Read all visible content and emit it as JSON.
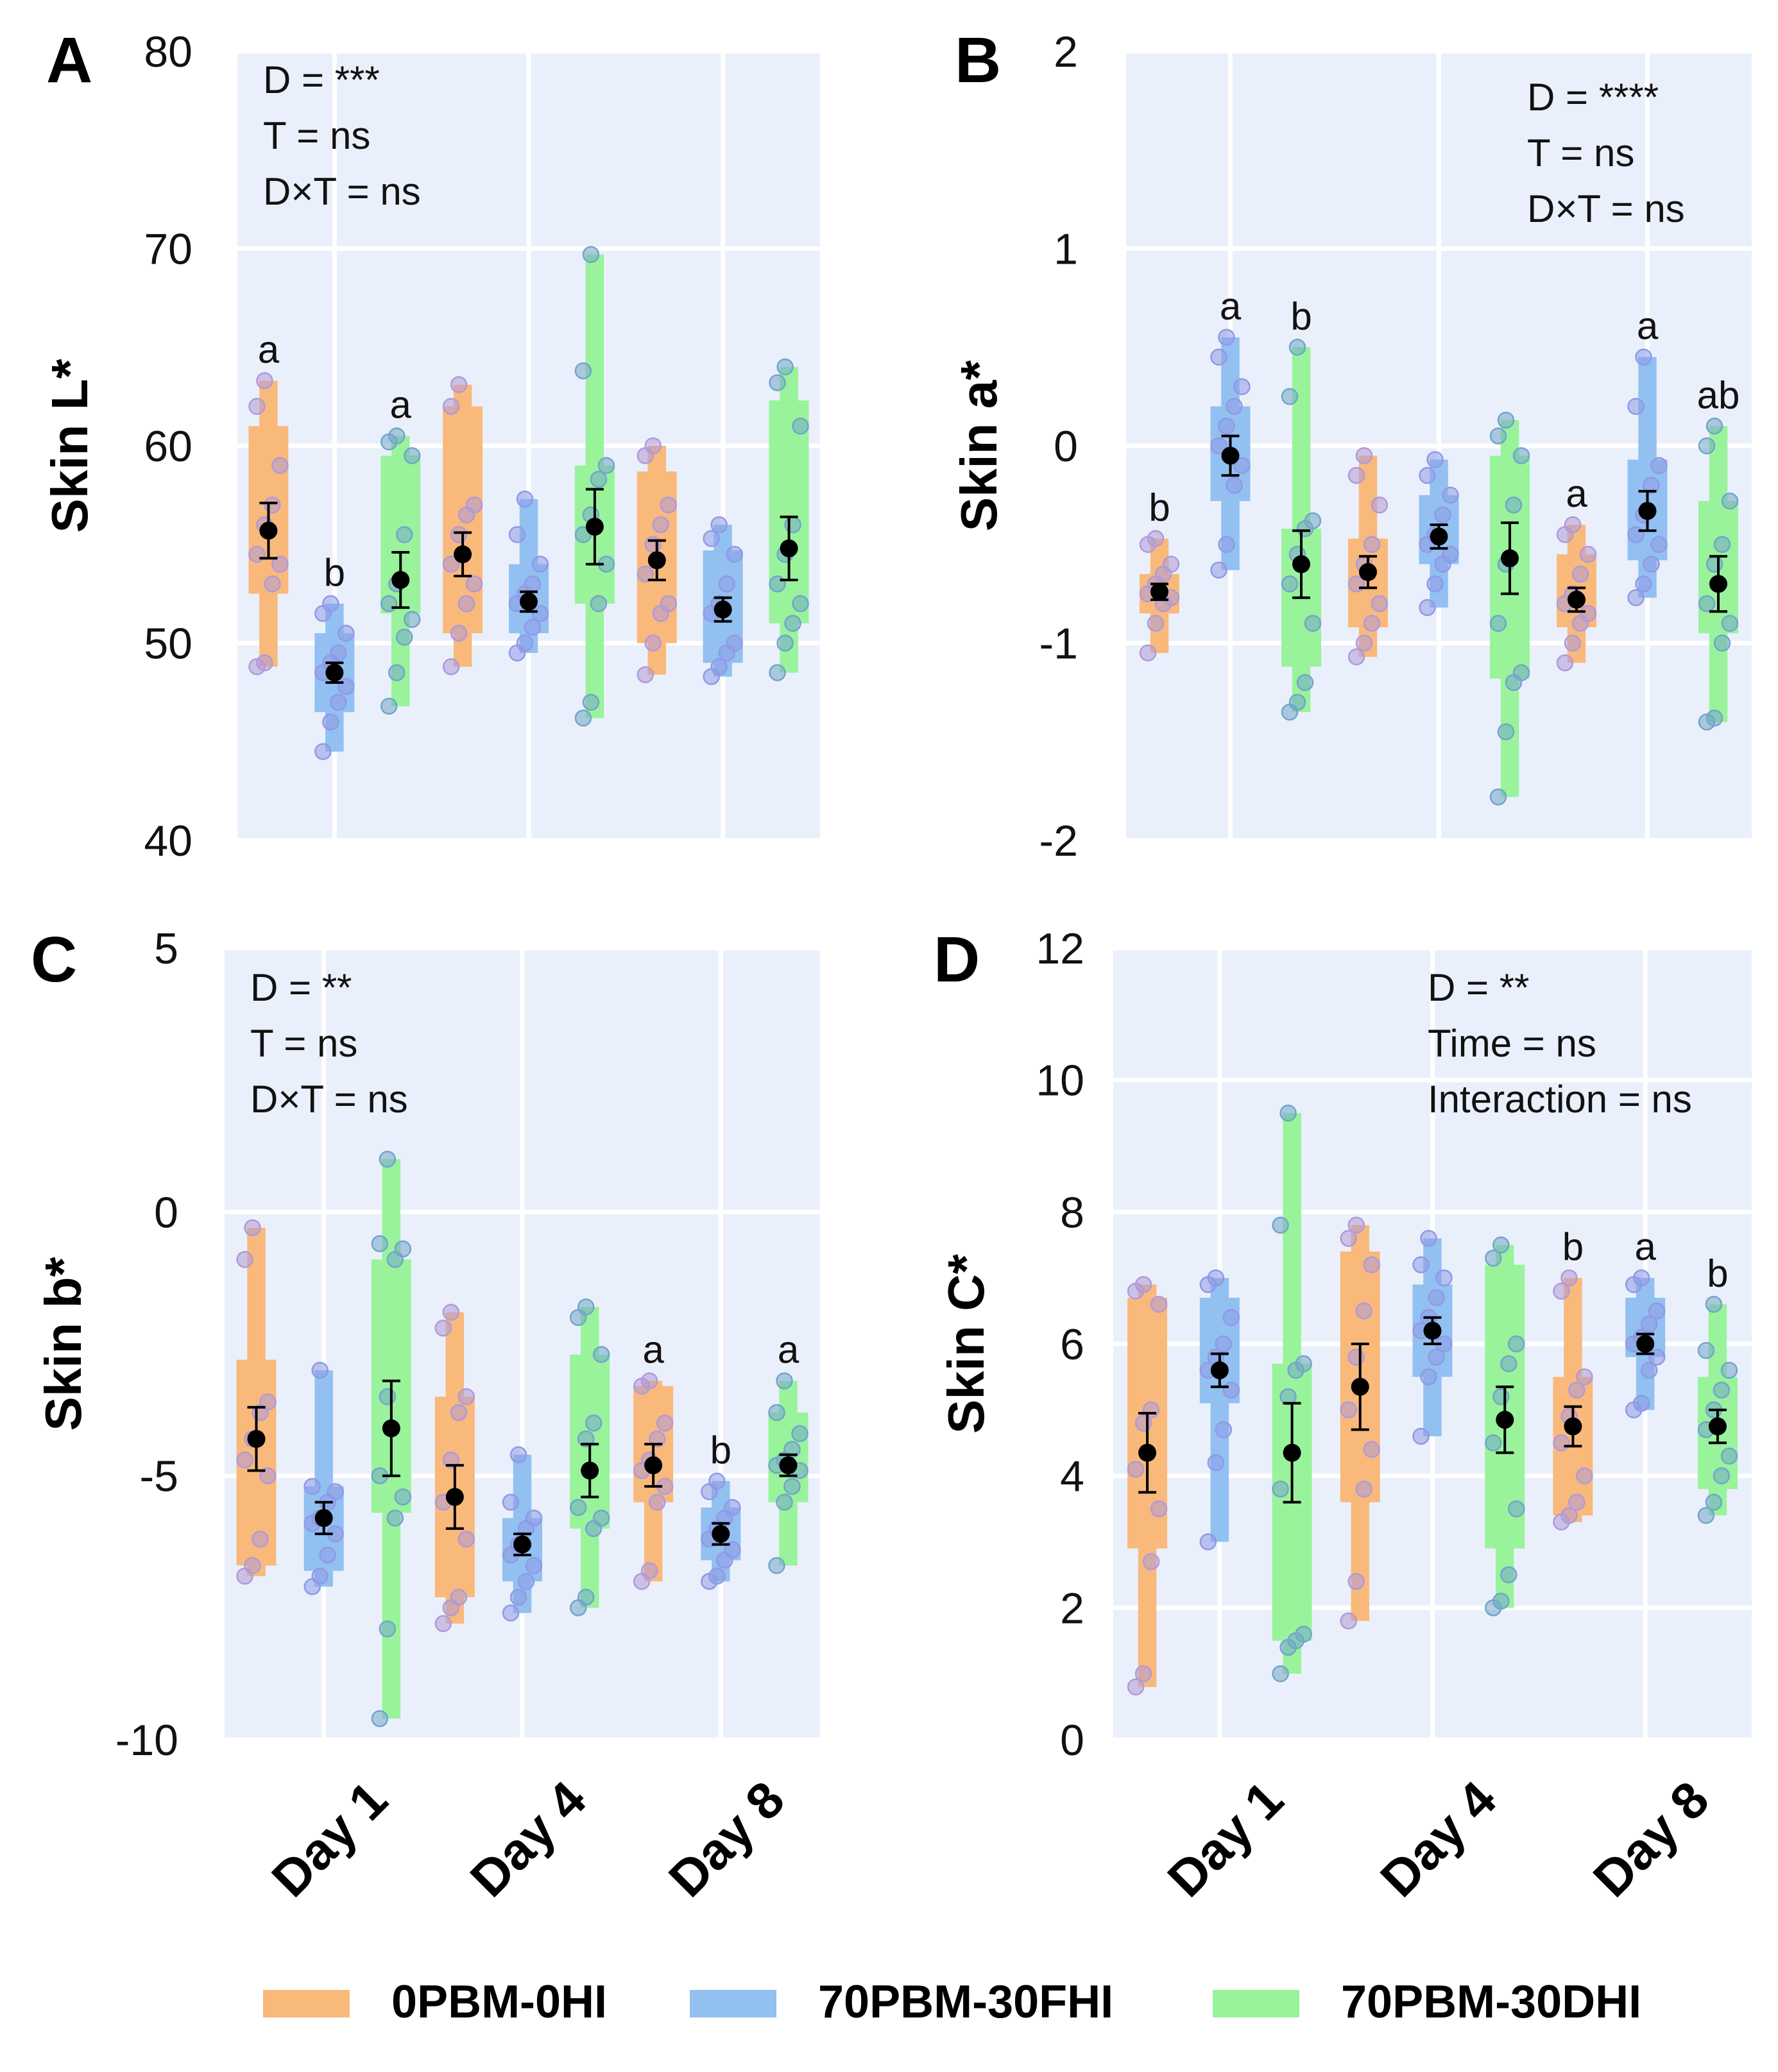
{
  "groups": [
    {
      "name": "0PBM-0HI",
      "color": "#f9b97b",
      "dot": "#b19ad7"
    },
    {
      "name": "70PBM-30FHI",
      "color": "#92c0f1",
      "dot": "#8f9ae6"
    },
    {
      "name": "70PBM-30DHI",
      "color": "#99f39b",
      "dot": "#73a5c9"
    }
  ],
  "days": [
    "Day 1",
    "Day 4",
    "Day 8"
  ],
  "chart_data": [
    {
      "panel": "A",
      "type": "boxplot",
      "ylabel": "Skin L*",
      "ylim": [
        40,
        80
      ],
      "yticks": [
        40,
        50,
        60,
        70,
        80
      ],
      "stats": [
        "D = ***",
        "T = ns",
        "D×T = ns"
      ],
      "stats_pos": "top-left",
      "series": [
        {
          "group": "0PBM-0HI",
          "boxes": [
            [
              52.5,
              61
            ],
            [
              50.5,
              62
            ],
            [
              50,
              58.7
            ]
          ],
          "whiskers": [
            [
              48.8,
              63.3
            ],
            [
              48.8,
              63.1
            ],
            [
              48.4,
              60
            ]
          ],
          "mean": [
            55.7,
            54.5,
            54.2
          ],
          "sem": [
            1.4,
            1.1,
            1.0
          ],
          "letters": [
            "a",
            "",
            ""
          ],
          "points": [
            [
              48.8,
              49,
              53,
              54,
              54.5,
              56,
              57,
              59,
              62,
              63.3
            ],
            [
              48.8,
              50.5,
              52,
              53,
              54,
              55.5,
              56.5,
              57,
              62,
              63.1
            ],
            [
              48.4,
              50,
              51.5,
              52,
              53.5,
              55,
              56,
              57,
              59.5,
              60
            ]
          ]
        },
        {
          "group": "70PBM-30FHI",
          "boxes": [
            [
              46.5,
              50.5
            ],
            [
              50.5,
              54
            ],
            [
              49,
              54.7
            ]
          ],
          "whiskers": [
            [
              44.5,
              52
            ],
            [
              49.5,
              57.3
            ],
            [
              48.3,
              56
            ]
          ],
          "mean": [
            48.5,
            52.1,
            51.7
          ],
          "sem": [
            0.5,
            0.5,
            0.6
          ],
          "letters": [
            "b",
            "",
            ""
          ],
          "points": [
            [
              44.5,
              46,
              47,
              47.8,
              48.5,
              49,
              49.5,
              50.5,
              51.5,
              52
            ],
            [
              49.5,
              50,
              50.8,
              51.5,
              52,
              52.5,
              53,
              54,
              55.5,
              57.3
            ],
            [
              48.3,
              48.8,
              49.5,
              50,
              51.5,
              52,
              53,
              54.5,
              55.3,
              56
            ]
          ]
        },
        {
          "group": "70PBM-30DHI",
          "boxes": [
            [
              51.5,
              59.5
            ],
            [
              52,
              59
            ],
            [
              51,
              62.3
            ]
          ],
          "whiskers": [
            [
              46.8,
              60.5
            ],
            [
              46.2,
              69.7
            ],
            [
              48.5,
              64
            ]
          ],
          "mean": [
            53.2,
            55.9,
            54.8
          ],
          "sem": [
            1.4,
            1.9,
            1.6
          ],
          "letters": [
            "a",
            "",
            ""
          ],
          "points": [
            [
              46.8,
              48.5,
              50.3,
              51.2,
              52,
              53,
              55.5,
              59.5,
              60.2,
              60.5
            ],
            [
              46.2,
              47,
              52,
              54,
              55.5,
              56.5,
              58.3,
              59,
              63.8,
              69.7
            ],
            [
              48.5,
              50,
              51,
              52,
              53,
              54.5,
              56,
              61,
              63.2,
              64
            ]
          ]
        }
      ]
    },
    {
      "panel": "B",
      "type": "boxplot",
      "ylabel": "Skin a*",
      "ylim": [
        -2,
        2
      ],
      "yticks": [
        -2,
        -1,
        0,
        1,
        2
      ],
      "stats": [
        "D = ****",
        "T = ns",
        "D×T = ns"
      ],
      "stats_pos": "top-right",
      "series": [
        {
          "group": "0PBM-0HI",
          "boxes": [
            [
              -0.85,
              -0.65
            ],
            [
              -0.92,
              -0.47
            ],
            [
              -0.92,
              -0.55
            ]
          ],
          "whiskers": [
            [
              -1.05,
              -0.47
            ],
            [
              -1.07,
              -0.05
            ],
            [
              -1.1,
              -0.4
            ]
          ],
          "mean": [
            -0.74,
            -0.64,
            -0.78
          ],
          "sem": [
            0.04,
            0.08,
            0.06
          ],
          "letters": [
            "b",
            "",
            "a"
          ],
          "points": [
            [
              -1.05,
              -0.9,
              -0.8,
              -0.77,
              -0.75,
              -0.7,
              -0.65,
              -0.6,
              -0.5,
              -0.47
            ],
            [
              -1.07,
              -1.0,
              -0.9,
              -0.8,
              -0.7,
              -0.6,
              -0.5,
              -0.3,
              -0.15,
              -0.05
            ],
            [
              -1.1,
              -1.0,
              -0.9,
              -0.85,
              -0.8,
              -0.75,
              -0.65,
              -0.55,
              -0.45,
              -0.4
            ]
          ]
        },
        {
          "group": "70PBM-30FHI",
          "boxes": [
            [
              -0.28,
              0.2
            ],
            [
              -0.6,
              -0.25
            ],
            [
              -0.58,
              -0.07
            ]
          ],
          "whiskers": [
            [
              -0.63,
              0.55
            ],
            [
              -0.82,
              -0.07
            ],
            [
              -0.77,
              0.45
            ]
          ],
          "mean": [
            -0.05,
            -0.46,
            -0.33
          ],
          "sem": [
            0.1,
            0.06,
            0.1
          ],
          "letters": [
            "a",
            "",
            "a"
          ],
          "points": [
            [
              -0.63,
              -0.5,
              -0.2,
              -0.1,
              0.0,
              0.1,
              0.2,
              0.3,
              0.45,
              0.55
            ],
            [
              -0.82,
              -0.7,
              -0.6,
              -0.55,
              -0.5,
              -0.45,
              -0.35,
              -0.25,
              -0.15,
              -0.07
            ],
            [
              -0.77,
              -0.7,
              -0.6,
              -0.5,
              -0.45,
              -0.35,
              -0.2,
              -0.1,
              0.2,
              0.45
            ]
          ]
        },
        {
          "group": "70PBM-30DHI",
          "boxes": [
            [
              -1.12,
              -0.42
            ],
            [
              -1.18,
              -0.05
            ],
            [
              -0.95,
              -0.28
            ]
          ],
          "whiskers": [
            [
              -1.35,
              0.5
            ],
            [
              -1.78,
              0.13
            ],
            [
              -1.4,
              0.1
            ]
          ],
          "mean": [
            -0.6,
            -0.57,
            -0.7
          ],
          "sem": [
            0.17,
            0.18,
            0.14
          ],
          "letters": [
            "b",
            "",
            "ab"
          ],
          "points": [
            [
              -1.35,
              -1.3,
              -1.2,
              -0.9,
              -0.7,
              -0.55,
              -0.42,
              -0.38,
              0.25,
              0.5
            ],
            [
              -1.78,
              -1.45,
              -1.2,
              -1.15,
              -0.9,
              -0.6,
              -0.3,
              -0.05,
              0.05,
              0.13
            ],
            [
              -1.4,
              -1.38,
              -1.0,
              -0.9,
              -0.8,
              -0.6,
              -0.5,
              -0.28,
              0.0,
              0.1
            ]
          ]
        }
      ]
    },
    {
      "panel": "C",
      "type": "boxplot",
      "ylabel": "Skin b*",
      "ylim": [
        -10,
        5
      ],
      "yticks": [
        -10,
        -5,
        0,
        5
      ],
      "stats": [
        "D = **",
        "T = ns",
        "D×T = ns"
      ],
      "stats_pos": "top-left",
      "series": [
        {
          "group": "0PBM-0HI",
          "boxes": [
            [
              -6.7,
              -2.8
            ],
            [
              -7.3,
              -3.5
            ],
            [
              -5.5,
              -3.3
            ]
          ],
          "whiskers": [
            [
              -6.9,
              -0.3
            ],
            [
              -7.8,
              -1.9
            ],
            [
              -7.0,
              -3.2
            ]
          ],
          "mean": [
            -4.3,
            -5.4,
            -4.8
          ],
          "sem": [
            0.6,
            0.6,
            0.4
          ],
          "letters": [
            "",
            "",
            "a"
          ],
          "points": [
            [
              -6.9,
              -6.7,
              -6.2,
              -5.0,
              -4.7,
              -4.3,
              -3.8,
              -3.6,
              -0.9,
              -0.3
            ],
            [
              -7.8,
              -7.5,
              -7.3,
              -6.2,
              -5.5,
              -4.7,
              -3.8,
              -3.5,
              -2.2,
              -1.9
            ],
            [
              -7.0,
              -6.8,
              -5.5,
              -5.2,
              -4.9,
              -4.7,
              -4.3,
              -4.0,
              -3.3,
              -3.2
            ]
          ]
        },
        {
          "group": "70PBM-30FHI",
          "boxes": [
            [
              -6.8,
              -5.2
            ],
            [
              -7.0,
              -5.8
            ],
            [
              -6.6,
              -5.6
            ]
          ],
          "whiskers": [
            [
              -7.1,
              -3.0
            ],
            [
              -7.6,
              -4.6
            ],
            [
              -7.0,
              -5.1
            ]
          ],
          "mean": [
            -5.8,
            -6.3,
            -6.1
          ],
          "sem": [
            0.3,
            0.2,
            0.2
          ],
          "letters": [
            "",
            "",
            "b"
          ],
          "points": [
            [
              -7.1,
              -6.9,
              -6.5,
              -6.1,
              -5.9,
              -5.8,
              -5.5,
              -5.3,
              -5.2,
              -3.0
            ],
            [
              -7.6,
              -7.3,
              -7.0,
              -6.7,
              -6.5,
              -6.3,
              -6.0,
              -5.8,
              -5.5,
              -4.6
            ],
            [
              -7.0,
              -6.9,
              -6.6,
              -6.4,
              -6.2,
              -6.0,
              -5.8,
              -5.6,
              -5.3,
              -5.1
            ]
          ]
        },
        {
          "group": "70PBM-30DHI",
          "boxes": [
            [
              -5.7,
              -0.9
            ],
            [
              -6.0,
              -2.7
            ],
            [
              -5.5,
              -3.8
            ]
          ],
          "whiskers": [
            [
              -9.6,
              1.0
            ],
            [
              -7.5,
              -1.8
            ],
            [
              -6.7,
              -3.2
            ]
          ],
          "mean": [
            -4.1,
            -4.9,
            -4.8
          ],
          "sem": [
            0.9,
            0.5,
            0.2
          ],
          "letters": [
            "",
            "",
            "a"
          ],
          "points": [
            [
              -9.6,
              -7.9,
              -5.8,
              -5.4,
              -5.0,
              -3.5,
              -0.9,
              -0.7,
              -0.6,
              1.0
            ],
            [
              -7.5,
              -7.3,
              -6.0,
              -5.8,
              -5.6,
              -4.3,
              -4.0,
              -2.7,
              -2.0,
              -1.8
            ],
            [
              -6.7,
              -5.5,
              -5.2,
              -4.9,
              -4.8,
              -4.7,
              -4.5,
              -4.2,
              -3.8,
              -3.2
            ]
          ]
        }
      ]
    },
    {
      "panel": "D",
      "type": "boxplot",
      "ylabel": "Skin C*",
      "ylim": [
        0,
        12
      ],
      "yticks": [
        0,
        2,
        4,
        6,
        8,
        10,
        12
      ],
      "stats": [
        "D = **",
        "Time = ns",
        "Interaction = ns"
      ],
      "stats_pos": "top-right",
      "series": [
        {
          "group": "0PBM-0HI",
          "boxes": [
            [
              2.9,
              6.7
            ],
            [
              3.6,
              7.4
            ],
            [
              3.4,
              5.5
            ]
          ],
          "whiskers": [
            [
              0.8,
              6.9
            ],
            [
              1.8,
              7.8
            ],
            [
              3.3,
              7.0
            ]
          ],
          "mean": [
            4.35,
            5.35,
            4.75
          ],
          "sem": [
            0.6,
            0.65,
            0.3
          ],
          "letters": [
            "",
            "",
            "b"
          ],
          "points": [
            [
              0.8,
              1.0,
              2.7,
              3.5,
              4.1,
              4.8,
              5.0,
              6.6,
              6.8,
              6.9
            ],
            [
              1.8,
              2.4,
              3.8,
              4.4,
              5.0,
              5.8,
              6.5,
              7.2,
              7.6,
              7.8
            ],
            [
              3.3,
              3.4,
              3.6,
              4.0,
              4.5,
              4.9,
              5.3,
              5.5,
              6.8,
              7.0
            ]
          ]
        },
        {
          "group": "70PBM-30FHI",
          "boxes": [
            [
              5.1,
              6.7
            ],
            [
              5.5,
              6.9
            ],
            [
              5.8,
              6.7
            ]
          ],
          "whiskers": [
            [
              3.0,
              7.0
            ],
            [
              4.6,
              7.6
            ],
            [
              5.0,
              7.0
            ]
          ],
          "mean": [
            5.6,
            6.2,
            6.0
          ],
          "sem": [
            0.25,
            0.2,
            0.15
          ],
          "letters": [
            "",
            "",
            "a"
          ],
          "points": [
            [
              3.0,
              4.2,
              4.7,
              5.3,
              5.6,
              5.8,
              6.0,
              6.4,
              6.9,
              7.0
            ],
            [
              4.6,
              5.5,
              5.8,
              6.0,
              6.2,
              6.4,
              6.7,
              7.0,
              7.2,
              7.6
            ],
            [
              5.0,
              5.1,
              5.6,
              5.8,
              6.0,
              6.1,
              6.3,
              6.5,
              6.9,
              7.0
            ]
          ]
        },
        {
          "group": "70PBM-30DHI",
          "boxes": [
            [
              1.5,
              5.7
            ],
            [
              2.9,
              7.2
            ],
            [
              3.8,
              5.5
            ]
          ],
          "whiskers": [
            [
              1.0,
              9.5
            ],
            [
              2.0,
              7.5
            ],
            [
              3.4,
              6.6
            ]
          ],
          "mean": [
            4.35,
            4.85,
            4.75
          ],
          "sem": [
            0.75,
            0.5,
            0.25
          ],
          "letters": [
            "",
            "",
            "b"
          ],
          "points": [
            [
              1.0,
              1.4,
              1.5,
              1.6,
              3.8,
              5.2,
              5.6,
              5.7,
              7.8,
              9.5
            ],
            [
              2.0,
              2.1,
              2.5,
              3.5,
              4.5,
              5.2,
              5.7,
              6.0,
              7.3,
              7.5
            ],
            [
              3.4,
              3.6,
              4.0,
              4.3,
              4.7,
              5.0,
              5.3,
              5.6,
              5.9,
              6.6
            ]
          ]
        }
      ]
    }
  ]
}
